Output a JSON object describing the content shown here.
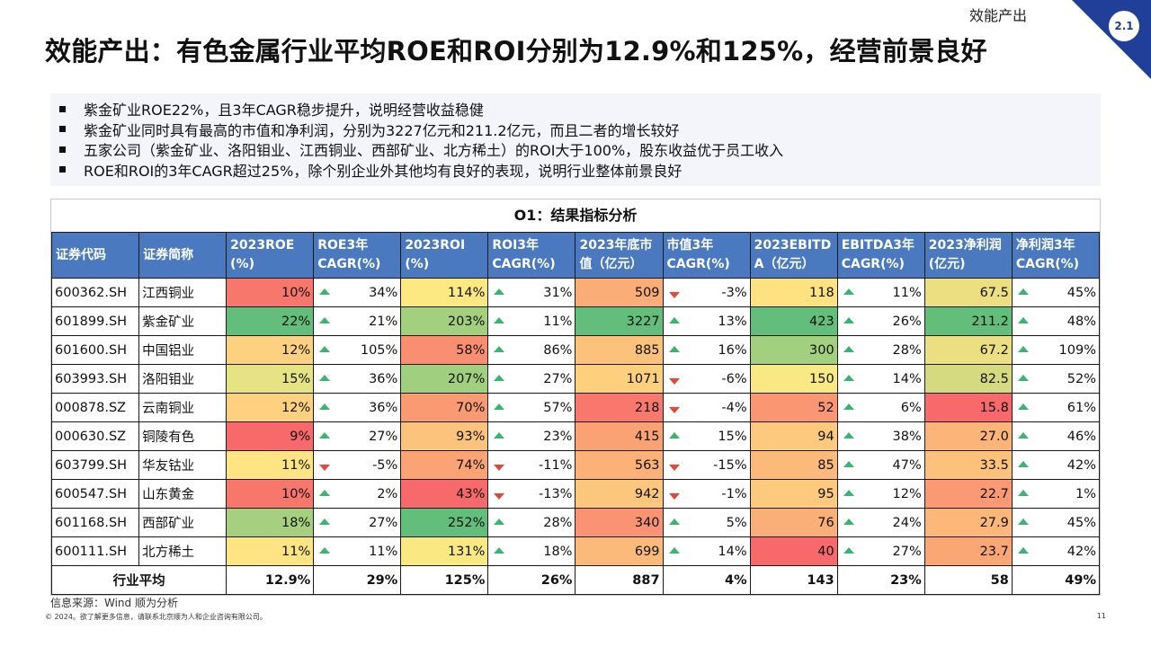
{
  "section_label": "效能产出",
  "section_number": "2.1",
  "title": "效能产出：有色金属行业平均ROE和ROI分别为12.9%和125%，经营前景良好",
  "bullets": [
    "紫金矿业ROE22%，且3年CAGR稳步提升，说明经营收益稳健",
    "紫金矿业同时具有最高的市值和净利润，分别为3227亿元和211.2亿元，而且二者的增长较好",
    "五家公司（紫金矿业、洛阳钼业、江西铜业、西部矿业、北方稀土）的ROI大于100%，股东收益优于员工收入",
    "ROE和ROI的3年CAGR超过25%，除个别企业外其他均有良好的表现，说明行业整体前景良好"
  ],
  "table": {
    "title": "O1：结果指标分析",
    "headers": [
      "证券代码",
      "证券简称",
      "2023ROE\n(%)",
      "ROE3年\nCAGR(%)",
      "2023ROI\n(%)",
      "ROI3年\nCAGR(%)",
      "2023年底市\n值（亿元）",
      "市值3年\nCAGR(%)",
      "2023EBITD\nA（亿元）",
      "EBITDA3年\nCAGR(%)",
      "2023净利润\n(亿元)",
      "净利润3年\nCAGR(%)"
    ],
    "rows": [
      {
        "code": "600362.SH",
        "name": "江西铜业",
        "roe": "10%",
        "roe_cagr": "34%",
        "roe_dir": "up",
        "roi": "114%",
        "roi_cagr": "31%",
        "roi_dir": "up",
        "mcap": "509",
        "mcap_cagr": "-3%",
        "mcap_dir": "down",
        "ebitda": "118",
        "ebitda_cagr": "11%",
        "ebitda_dir": "up",
        "np": "67.5",
        "np_cagr": "45%",
        "np_dir": "up",
        "colors": {
          "roe": "#f8776d",
          "roi": "#fde881",
          "mcap": "#fbad78",
          "ebitda": "#fee282",
          "np": "#ecdf81"
        }
      },
      {
        "code": "601899.SH",
        "name": "紫金矿业",
        "roe": "22%",
        "roe_cagr": "21%",
        "roe_dir": "up",
        "roi": "203%",
        "roi_cagr": "11%",
        "roi_dir": "up",
        "mcap": "3227",
        "mcap_cagr": "13%",
        "mcap_dir": "up",
        "ebitda": "423",
        "ebitda_cagr": "26%",
        "ebitda_dir": "up",
        "np": "211.2",
        "np_cagr": "48%",
        "np_dir": "up",
        "colors": {
          "roe": "#63be7b",
          "roi": "#a3d07f",
          "mcap": "#63be7b",
          "ebitda": "#63be7b",
          "np": "#63be7b"
        }
      },
      {
        "code": "601600.SH",
        "name": "中国铝业",
        "roe": "12%",
        "roe_cagr": "105%",
        "roe_dir": "up",
        "roi": "58%",
        "roi_cagr": "86%",
        "roi_dir": "up",
        "mcap": "885",
        "mcap_cagr": "16%",
        "mcap_dir": "up",
        "ebitda": "300",
        "ebitda_cagr": "28%",
        "ebitda_dir": "up",
        "np": "67.2",
        "np_cagr": "109%",
        "np_dir": "up",
        "colors": {
          "roe": "#fdd17f",
          "roi": "#f98f70",
          "mcap": "#fcc27c",
          "ebitda": "#a2d07f",
          "np": "#ecdf81"
        }
      },
      {
        "code": "603993.SH",
        "name": "洛阳钼业",
        "roe": "15%",
        "roe_cagr": "36%",
        "roe_dir": "up",
        "roi": "207%",
        "roi_cagr": "27%",
        "roi_dir": "up",
        "mcap": "1071",
        "mcap_cagr": "-6%",
        "mcap_dir": "down",
        "ebitda": "150",
        "ebitda_cagr": "14%",
        "ebitda_dir": "up",
        "np": "82.5",
        "np_cagr": "52%",
        "np_dir": "up",
        "colors": {
          "roe": "#e5e383",
          "roi": "#a0cf7f",
          "mcap": "#fdd07e",
          "ebitda": "#f9e984",
          "np": "#d5da81"
        }
      },
      {
        "code": "000878.SZ",
        "name": "云南铜业",
        "roe": "12%",
        "roe_cagr": "36%",
        "roe_dir": "up",
        "roi": "70%",
        "roi_cagr": "57%",
        "roi_dir": "up",
        "mcap": "218",
        "mcap_cagr": "-4%",
        "mcap_dir": "down",
        "ebitda": "52",
        "ebitda_cagr": "6%",
        "ebitda_dir": "up",
        "np": "15.8",
        "np_cagr": "61%",
        "np_dir": "up",
        "colors": {
          "roe": "#fdd17f",
          "roi": "#fa9a72",
          "mcap": "#f8786e",
          "ebitda": "#fa9772",
          "np": "#f8696b"
        }
      },
      {
        "code": "000630.SZ",
        "name": "铜陵有色",
        "roe": "9%",
        "roe_cagr": "27%",
        "roe_dir": "up",
        "roi": "93%",
        "roi_cagr": "23%",
        "roi_dir": "up",
        "mcap": "415",
        "mcap_cagr": "15%",
        "mcap_dir": "up",
        "ebitda": "94",
        "ebitda_cagr": "38%",
        "ebitda_dir": "up",
        "np": "27.0",
        "np_cagr": "46%",
        "np_dir": "up",
        "colors": {
          "roe": "#f8696b",
          "roi": "#fcc37c",
          "mcap": "#fba275",
          "ebitda": "#fcc97d",
          "np": "#fcb479"
        }
      },
      {
        "code": "603799.SH",
        "name": "华友钴业",
        "roe": "11%",
        "roe_cagr": "-5%",
        "roe_dir": "down",
        "roi": "74%",
        "roi_cagr": "-11%",
        "roi_dir": "down",
        "mcap": "563",
        "mcap_cagr": "-15%",
        "mcap_dir": "down",
        "ebitda": "85",
        "ebitda_cagr": "47%",
        "ebitda_dir": "up",
        "np": "33.5",
        "np_cagr": "42%",
        "np_dir": "up",
        "colors": {
          "roe": "#fee482",
          "roi": "#fba375",
          "mcap": "#fbb178",
          "ebitda": "#fbb97a",
          "np": "#fcc27c"
        }
      },
      {
        "code": "600547.SH",
        "name": "山东黄金",
        "roe": "10%",
        "roe_cagr": "2%",
        "roe_dir": "up",
        "roi": "43%",
        "roi_cagr": "-13%",
        "roi_dir": "down",
        "mcap": "942",
        "mcap_cagr": "-1%",
        "mcap_dir": "down",
        "ebitda": "95",
        "ebitda_cagr": "12%",
        "ebitda_dir": "up",
        "np": "22.7",
        "np_cagr": "1%",
        "np_dir": "up",
        "colors": {
          "roe": "#f8776d",
          "roi": "#f8696b",
          "mcap": "#fdc67d",
          "ebitda": "#fcc97d",
          "np": "#fa9973"
        }
      },
      {
        "code": "601168.SH",
        "name": "西部矿业",
        "roe": "18%",
        "roe_cagr": "27%",
        "roe_dir": "up",
        "roi": "252%",
        "roi_cagr": "28%",
        "roi_dir": "up",
        "mcap": "340",
        "mcap_cagr": "5%",
        "mcap_dir": "up",
        "ebitda": "76",
        "ebitda_cagr": "24%",
        "ebitda_dir": "up",
        "np": "27.9",
        "np_cagr": "45%",
        "np_dir": "up",
        "colors": {
          "roe": "#a6d07f",
          "roi": "#63be7b",
          "mcap": "#fa9373",
          "ebitda": "#fbaf78",
          "np": "#fcb779"
        }
      },
      {
        "code": "600111.SH",
        "name": "北方稀土",
        "roe": "11%",
        "roe_cagr": "11%",
        "roe_dir": "up",
        "roi": "131%",
        "roi_cagr": "18%",
        "roi_dir": "up",
        "mcap": "699",
        "mcap_cagr": "14%",
        "mcap_dir": "up",
        "ebitda": "40",
        "ebitda_cagr": "27%",
        "ebitda_dir": "up",
        "np": "23.7",
        "np_cagr": "42%",
        "np_dir": "up",
        "colors": {
          "roe": "#fee482",
          "roi": "#fae983",
          "mcap": "#fbba7a",
          "ebitda": "#f8696b",
          "np": "#fba775"
        }
      }
    ],
    "average": {
      "label": "行业平均",
      "roe": "12.9%",
      "roe_cagr": "29%",
      "roi": "125%",
      "roi_cagr": "26%",
      "mcap": "887",
      "mcap_cagr": "4%",
      "ebitda": "143",
      "ebitda_cagr": "23%",
      "np": "58",
      "np_cagr": "49%"
    }
  },
  "source": "信息来源：Wind 顺为分析",
  "copyright": "© 2024。欲了解更多信息，请联系北京顺为人和企业咨询有限公司。",
  "page_number": "11"
}
